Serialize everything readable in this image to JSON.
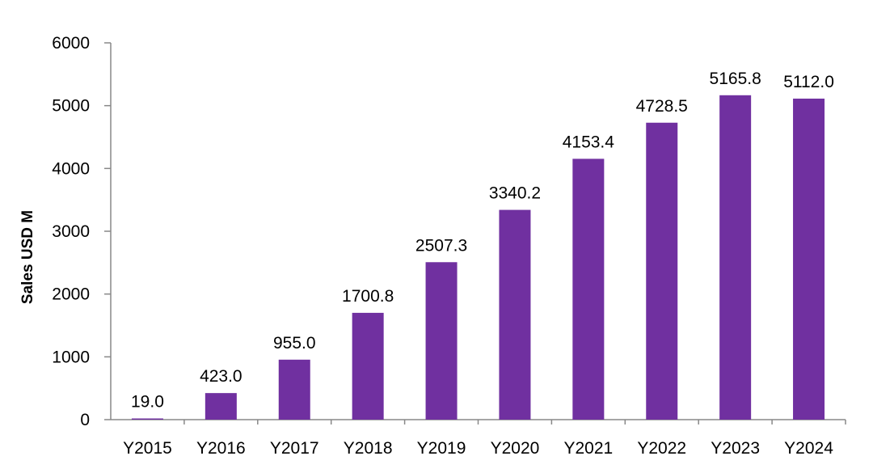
{
  "chart_data": {
    "type": "bar",
    "categories": [
      "Y2015",
      "Y2016",
      "Y2017",
      "Y2018",
      "Y2019",
      "Y2020",
      "Y2021",
      "Y2022",
      "Y2023",
      "Y2024"
    ],
    "values": [
      19.0,
      423.0,
      955.0,
      1700.8,
      2507.3,
      3340.2,
      4153.4,
      4728.5,
      5165.8,
      5112.0
    ],
    "data_labels": [
      "19.0",
      "423.0",
      "955.0",
      "1700.8",
      "2507.3",
      "3340.2",
      "4153.4",
      "4728.5",
      "5165.8",
      "5112.0"
    ],
    "title": "",
    "xlabel": "",
    "ylabel": "Sales USD M",
    "ylim": [
      0,
      6000
    ],
    "yticks": [
      "0",
      "1000",
      "2000",
      "3000",
      "4000",
      "5000",
      "6000"
    ],
    "grid": false,
    "legend": "none",
    "bar_color": "#7030A0",
    "axis_color": "#888888"
  }
}
